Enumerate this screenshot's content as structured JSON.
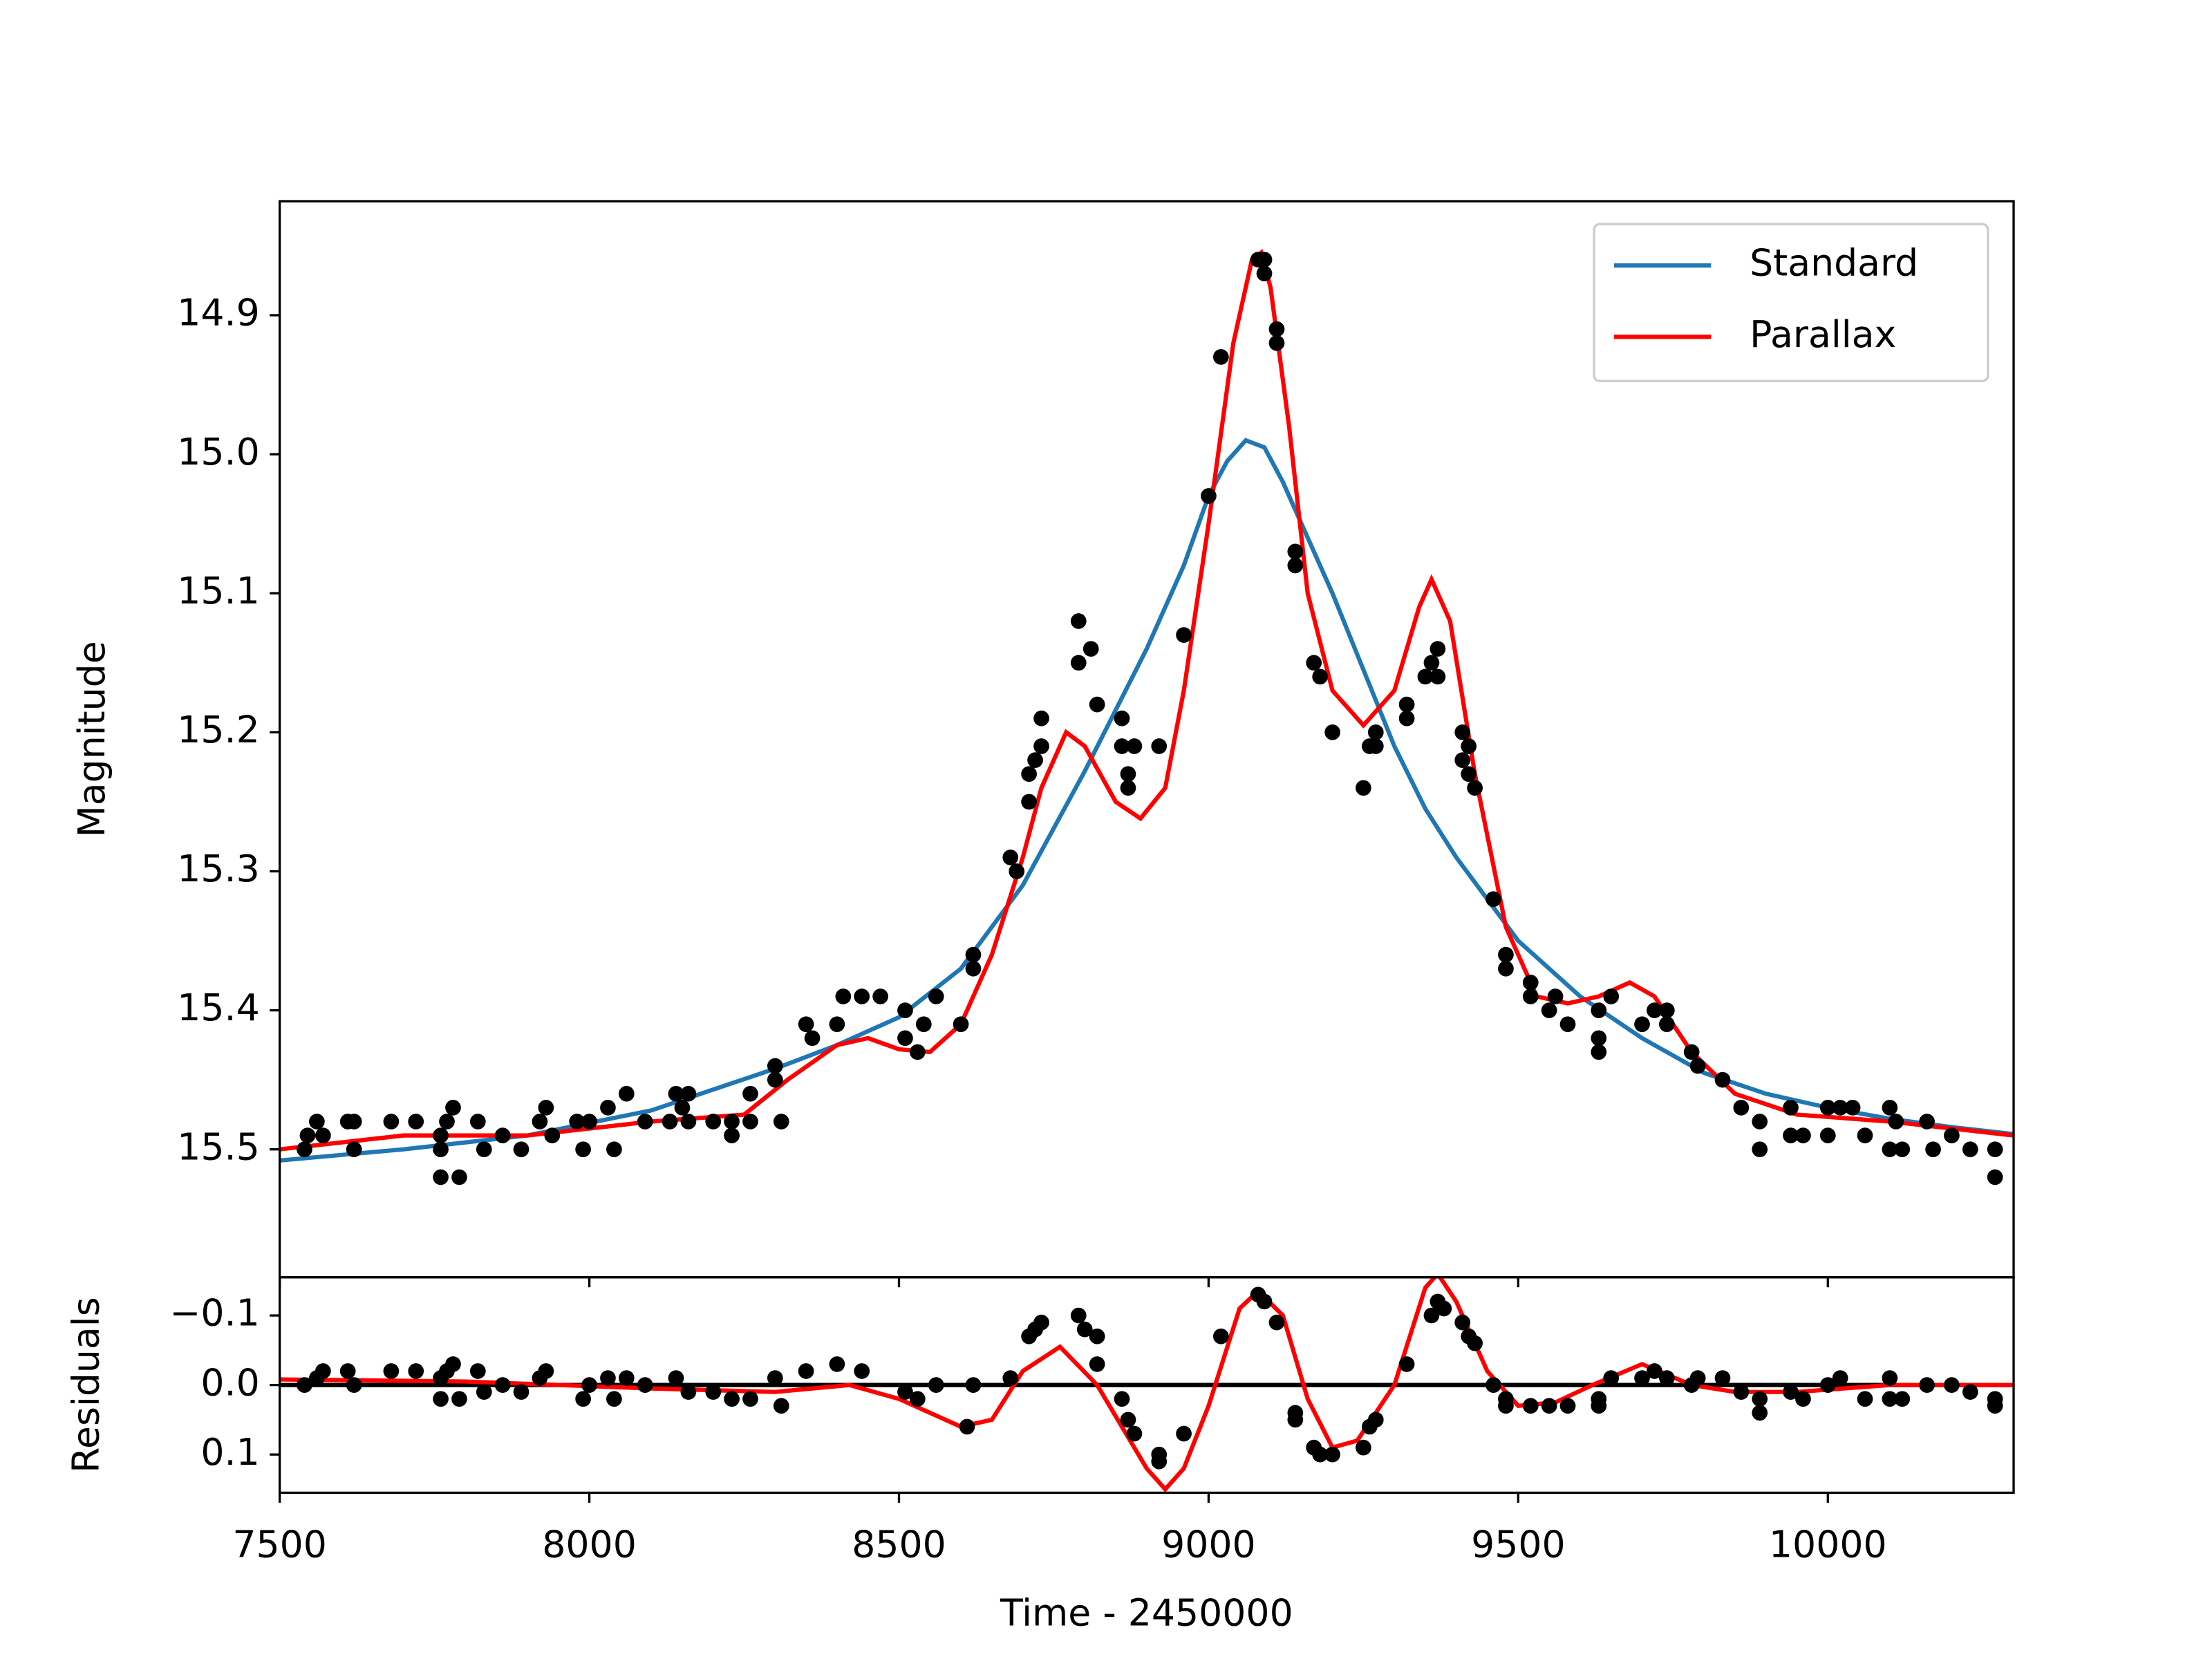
{
  "chart_data": [
    {
      "type": "line",
      "ylabel": "Magnitude",
      "invert_y": true,
      "legend": "upper right",
      "xlim": [
        7500,
        10300
      ],
      "xticks": [
        7500,
        8000,
        8500,
        9000,
        9500,
        10000
      ],
      "xtick_labels": false,
      "ylim": [
        14.818,
        15.592
      ],
      "yticks": [
        14.9,
        {
          "value": 15.0,
          "label": "15.0"
        },
        15.1,
        15.2,
        15.3,
        15.4,
        15.5
      ],
      "series": [
        {
          "name": "Standard",
          "color": "#1f77b4",
          "x": [
            7500,
            7700,
            7900,
            8100,
            8300,
            8400,
            8500,
            8600,
            8700,
            8800,
            8900,
            8960,
            9000,
            9030,
            9060,
            9090,
            9120,
            9160,
            9200,
            9250,
            9300,
            9350,
            9400,
            9500,
            9600,
            9700,
            9800,
            9900,
            10000,
            10100,
            10200,
            10300
          ],
          "values": [
            15.508,
            15.5,
            15.49,
            15.472,
            15.442,
            15.425,
            15.405,
            15.37,
            15.31,
            15.228,
            15.14,
            15.08,
            15.03,
            15.005,
            14.99,
            14.995,
            15.02,
            15.06,
            15.1,
            15.155,
            15.21,
            15.255,
            15.29,
            15.35,
            15.39,
            15.42,
            15.445,
            15.46,
            15.47,
            15.478,
            15.484,
            15.489
          ]
        },
        {
          "name": "Parallax",
          "color": "#ff0000",
          "x": [
            7500,
            7700,
            7900,
            8100,
            8250,
            8320,
            8400,
            8450,
            8500,
            8550,
            8600,
            8650,
            8700,
            8730,
            8770,
            8800,
            8850,
            8890,
            8930,
            8960,
            9000,
            9040,
            9070,
            9085,
            9100,
            9130,
            9160,
            9200,
            9250,
            9300,
            9340,
            9360,
            9390,
            9430,
            9480,
            9530,
            9580,
            9630,
            9680,
            9720,
            9780,
            9850,
            9950,
            10100,
            10300
          ],
          "values": [
            15.5,
            15.49,
            15.49,
            15.48,
            15.475,
            15.45,
            15.425,
            15.42,
            15.428,
            15.43,
            15.41,
            15.36,
            15.29,
            15.24,
            15.2,
            15.21,
            15.25,
            15.262,
            15.24,
            15.17,
            15.05,
            14.92,
            14.86,
            14.855,
            14.88,
            14.98,
            15.1,
            15.17,
            15.195,
            15.17,
            15.11,
            15.09,
            15.12,
            15.23,
            15.34,
            15.39,
            15.395,
            15.39,
            15.38,
            15.39,
            15.43,
            15.46,
            15.475,
            15.48,
            15.49
          ]
        }
      ],
      "points": {
        "color": "#000000",
        "x": [
          7540,
          7545,
          7560,
          7570,
          7610,
          7620,
          7620,
          7680,
          7720,
          7760,
          7760,
          7760,
          7770,
          7780,
          7790,
          7820,
          7830,
          7860,
          7890,
          7920,
          7930,
          7940,
          7980,
          7990,
          8000,
          8030,
          8040,
          8060,
          8090,
          8130,
          8140,
          8150,
          8160,
          8160,
          8200,
          8230,
          8230,
          8260,
          8260,
          8300,
          8300,
          8310,
          8350,
          8360,
          8400,
          8410,
          8440,
          8470,
          8510,
          8510,
          8530,
          8540,
          8560,
          8600,
          8620,
          8620,
          8680,
          8690,
          8710,
          8710,
          8720,
          8730,
          8730,
          8790,
          8790,
          8810,
          8820,
          8860,
          8860,
          8870,
          8870,
          8880,
          8920,
          8960,
          9000,
          9020,
          9080,
          9090,
          9090,
          9110,
          9110,
          9140,
          9140,
          9170,
          9180,
          9200,
          9250,
          9260,
          9270,
          9270,
          9320,
          9320,
          9350,
          9360,
          9370,
          9370,
          9410,
          9410,
          9420,
          9420,
          9430,
          9460,
          9480,
          9480,
          9520,
          9520,
          9550,
          9560,
          9580,
          9630,
          9630,
          9630,
          9650,
          9700,
          9720,
          9740,
          9740,
          9780,
          9790,
          9830,
          9860,
          9890,
          9890,
          9940,
          9940,
          9960,
          10000,
          10000,
          10020,
          10040,
          10060,
          10100,
          10100,
          10110,
          10120,
          10160,
          10170,
          10200,
          10230,
          10270,
          10270
        ],
        "values": [
          15.5,
          15.49,
          15.48,
          15.49,
          15.48,
          15.48,
          15.5,
          15.48,
          15.48,
          15.49,
          15.5,
          15.52,
          15.48,
          15.47,
          15.52,
          15.48,
          15.5,
          15.49,
          15.5,
          15.48,
          15.47,
          15.49,
          15.48,
          15.5,
          15.48,
          15.47,
          15.5,
          15.46,
          15.48,
          15.48,
          15.46,
          15.47,
          15.48,
          15.46,
          15.48,
          15.48,
          15.49,
          15.46,
          15.48,
          15.44,
          15.45,
          15.48,
          15.41,
          15.42,
          15.41,
          15.39,
          15.39,
          15.39,
          15.42,
          15.4,
          15.43,
          15.41,
          15.39,
          15.41,
          15.36,
          15.37,
          15.29,
          15.3,
          15.25,
          15.23,
          15.22,
          15.19,
          15.21,
          15.12,
          15.15,
          15.14,
          15.18,
          15.19,
          15.21,
          15.23,
          15.24,
          15.21,
          15.21,
          15.13,
          15.03,
          14.93,
          14.86,
          14.87,
          14.86,
          14.91,
          14.92,
          15.07,
          15.08,
          15.15,
          15.16,
          15.2,
          15.24,
          15.21,
          15.2,
          15.21,
          15.18,
          15.19,
          15.16,
          15.15,
          15.16,
          15.14,
          15.2,
          15.22,
          15.21,
          15.23,
          15.24,
          15.32,
          15.36,
          15.37,
          15.38,
          15.39,
          15.4,
          15.39,
          15.41,
          15.4,
          15.42,
          15.43,
          15.39,
          15.41,
          15.4,
          15.4,
          15.41,
          15.43,
          15.44,
          15.45,
          15.47,
          15.48,
          15.5,
          15.49,
          15.47,
          15.49,
          15.47,
          15.49,
          15.47,
          15.47,
          15.49,
          15.5,
          15.47,
          15.48,
          15.5,
          15.48,
          15.5,
          15.49,
          15.5,
          15.52,
          15.5
        ]
      }
    },
    {
      "type": "line",
      "ylabel": "Residuals",
      "xlabel": "Time - 2450000",
      "invert_y": true,
      "zero_line": true,
      "xlim": [
        7500,
        10300
      ],
      "xticks": [
        7500,
        8000,
        8500,
        9000,
        9500,
        10000
      ],
      "xtick_labels": true,
      "ylim": [
        -0.155,
        0.155
      ],
      "yticks": [
        {
          "value": -0.1,
          "label": "−0.1"
        },
        {
          "value": 0,
          "label": "0.0"
        },
        0.1
      ],
      "series": [
        {
          "color": "#ff0000",
          "x": [
            7500,
            7800,
            8100,
            8300,
            8420,
            8500,
            8600,
            8650,
            8700,
            8760,
            8820,
            8900,
            8930,
            8960,
            9000,
            9050,
            9080,
            9120,
            9160,
            9200,
            9240,
            9300,
            9350,
            9370,
            9400,
            9450,
            9500,
            9560,
            9620,
            9700,
            9780,
            9850,
            9950,
            10100,
            10300
          ],
          "values": [
            -0.008,
            -0.005,
            0.005,
            0.01,
            0.0,
            0.02,
            0.06,
            0.05,
            -0.02,
            -0.055,
            0.0,
            0.12,
            0.15,
            0.12,
            0.03,
            -0.11,
            -0.135,
            -0.1,
            0.02,
            0.09,
            0.08,
            0.0,
            -0.14,
            -0.16,
            -0.12,
            -0.02,
            0.03,
            0.025,
            0.0,
            -0.03,
            0.0,
            0.01,
            0.01,
            0.0,
            0.0
          ]
        }
      ],
      "points": {
        "color": "#000000",
        "x": [
          7540,
          7560,
          7570,
          7610,
          7620,
          7680,
          7720,
          7760,
          7760,
          7770,
          7780,
          7790,
          7820,
          7830,
          7860,
          7890,
          7920,
          7930,
          7990,
          8000,
          8030,
          8040,
          8060,
          8090,
          8140,
          8160,
          8200,
          8230,
          8260,
          8300,
          8310,
          8350,
          8400,
          8440,
          8510,
          8530,
          8560,
          8610,
          8620,
          8680,
          8710,
          8720,
          8730,
          8790,
          8800,
          8820,
          8820,
          8860,
          8870,
          8880,
          8920,
          8920,
          8960,
          9020,
          9080,
          9090,
          9110,
          9140,
          9140,
          9170,
          9180,
          9200,
          9250,
          9260,
          9270,
          9320,
          9360,
          9370,
          9380,
          9410,
          9420,
          9430,
          9460,
          9480,
          9480,
          9520,
          9550,
          9580,
          9630,
          9630,
          9650,
          9700,
          9720,
          9740,
          9780,
          9790,
          9830,
          9860,
          9890,
          9890,
          9940,
          9960,
          10000,
          10020,
          10060,
          10100,
          10100,
          10120,
          10160,
          10200,
          10230,
          10270,
          10270
        ],
        "values": [
          0.0,
          -0.01,
          -0.02,
          -0.02,
          0.0,
          -0.02,
          -0.02,
          -0.01,
          0.02,
          -0.02,
          -0.03,
          0.02,
          -0.02,
          0.01,
          0.0,
          0.01,
          -0.01,
          -0.02,
          0.02,
          0.0,
          -0.01,
          0.02,
          -0.01,
          0.0,
          -0.01,
          0.01,
          0.01,
          0.02,
          0.02,
          -0.01,
          0.03,
          -0.02,
          -0.03,
          -0.02,
          0.01,
          0.02,
          0.0,
          0.06,
          0.0,
          -0.01,
          -0.07,
          -0.08,
          -0.09,
          -0.1,
          -0.08,
          -0.07,
          -0.03,
          0.02,
          0.05,
          0.07,
          0.1,
          0.11,
          0.07,
          -0.07,
          -0.13,
          -0.12,
          -0.09,
          0.04,
          0.05,
          0.09,
          0.1,
          0.1,
          0.09,
          0.06,
          0.05,
          -0.03,
          -0.1,
          -0.12,
          -0.11,
          -0.09,
          -0.07,
          -0.06,
          0.0,
          0.02,
          0.03,
          0.03,
          0.03,
          0.03,
          0.02,
          0.03,
          -0.01,
          -0.01,
          -0.02,
          -0.01,
          0.0,
          -0.01,
          -0.01,
          0.01,
          0.02,
          0.04,
          0.01,
          0.02,
          0.0,
          -0.01,
          0.02,
          0.02,
          -0.01,
          0.02,
          0.0,
          0.0,
          0.01,
          0.03,
          0.02
        ]
      }
    }
  ]
}
